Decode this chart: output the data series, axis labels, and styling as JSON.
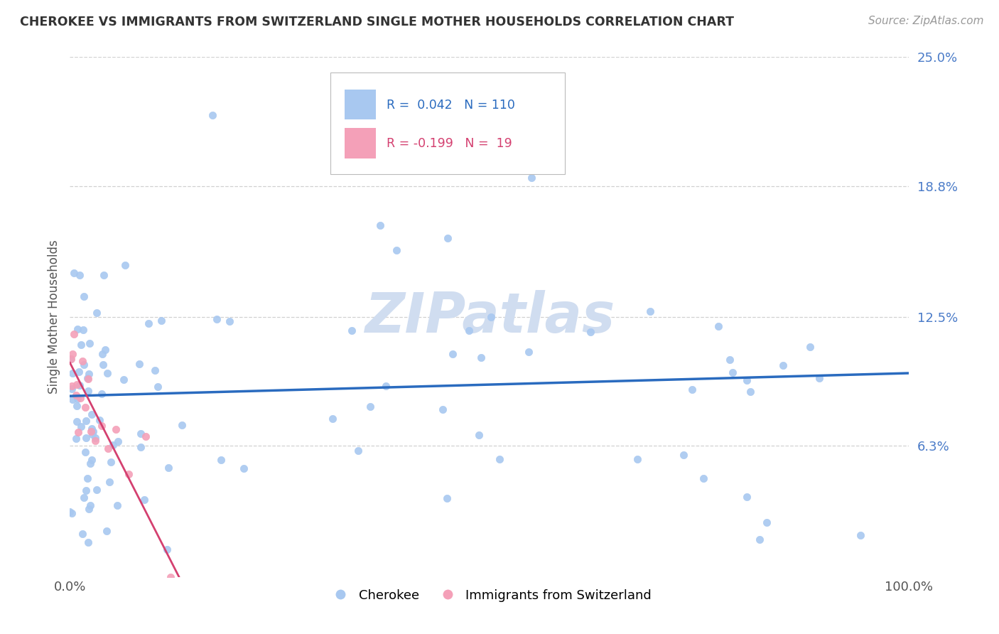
{
  "title": "CHEROKEE VS IMMIGRANTS FROM SWITZERLAND SINGLE MOTHER HOUSEHOLDS CORRELATION CHART",
  "source_text": "Source: ZipAtlas.com",
  "ylabel": "Single Mother Households",
  "xlim": [
    0.0,
    1.0
  ],
  "ylim": [
    0.0,
    0.25
  ],
  "ytick_vals": [
    0.063,
    0.125,
    0.188,
    0.25
  ],
  "ytick_labels": [
    "6.3%",
    "12.5%",
    "18.8%",
    "25.0%"
  ],
  "xtick_vals": [
    0.0,
    1.0
  ],
  "xtick_labels": [
    "0.0%",
    "100.0%"
  ],
  "legend_r1": "R = 0.042",
  "legend_n1": "N = 110",
  "legend_r2": "R = -0.199",
  "legend_n2": "N =  19",
  "cherokee_color": "#a8c8f0",
  "swiss_color": "#f4a0b8",
  "cherokee_line_color": "#2a6bbf",
  "swiss_line_color": "#d44070",
  "swiss_line_dash_color": "#e8a0b8",
  "tick_color": "#4a7bc8",
  "title_color": "#333333",
  "watermark_color": "#d0ddf0",
  "background_color": "#ffffff",
  "grid_color": "#cccccc",
  "cherokee_trend_x0": 0.0,
  "cherokee_trend_y0": 0.087,
  "cherokee_trend_x1": 1.0,
  "cherokee_trend_y1": 0.098,
  "swiss_trend_x0": 0.0,
  "swiss_trend_y0": 0.103,
  "swiss_trend_x1": 0.13,
  "swiss_trend_y1": 0.0
}
